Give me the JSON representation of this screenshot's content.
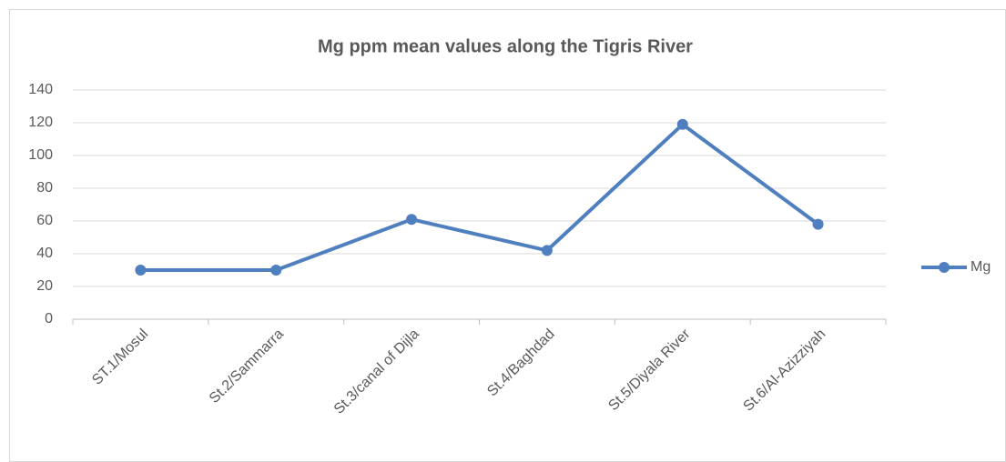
{
  "chart_data": {
    "type": "line",
    "title": "Mg ppm mean values along the Tigris River",
    "categories": [
      "ST.1/Mosul",
      "St.2/Sammarra",
      "St.3/canal of Dijla",
      "St.4/Baghdad",
      "St.5/Diyala River",
      "St.6/Al-Azizziyah"
    ],
    "series": [
      {
        "name": "Mg",
        "color": "#4f7fbf",
        "values": [
          30,
          30,
          61,
          42,
          119,
          58
        ]
      }
    ],
    "ylim": [
      0,
      140
    ],
    "yticks": [
      0,
      20,
      40,
      60,
      80,
      100,
      120,
      140
    ],
    "grid": true,
    "legend": "right"
  }
}
